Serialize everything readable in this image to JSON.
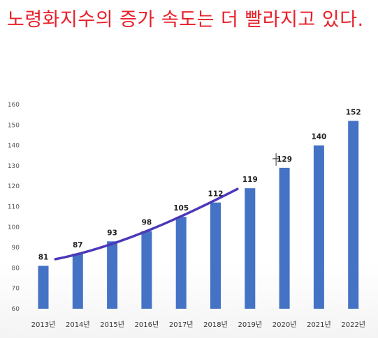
{
  "headline": "노령화지수의 증가 속도는 더 빨라지고 있다.",
  "chart_data": {
    "type": "bar",
    "title": "",
    "xlabel": "",
    "ylabel": "",
    "categories": [
      "2013년",
      "2014년",
      "2015년",
      "2016년",
      "2017년",
      "2018년",
      "2019년",
      "2020년",
      "2021년",
      "2022년"
    ],
    "values": [
      81,
      87,
      93,
      98,
      105,
      112,
      119,
      129,
      140,
      152
    ],
    "ylim": [
      60,
      160
    ],
    "yticks": [
      60,
      70,
      80,
      90,
      100,
      110,
      120,
      130,
      140,
      150,
      160
    ],
    "grid": false,
    "bar_color": "#4472c4",
    "annotation": {
      "type": "freehand-curve",
      "color": "#4b39b8",
      "span_categories": [
        "2014년",
        "2019년"
      ]
    }
  }
}
